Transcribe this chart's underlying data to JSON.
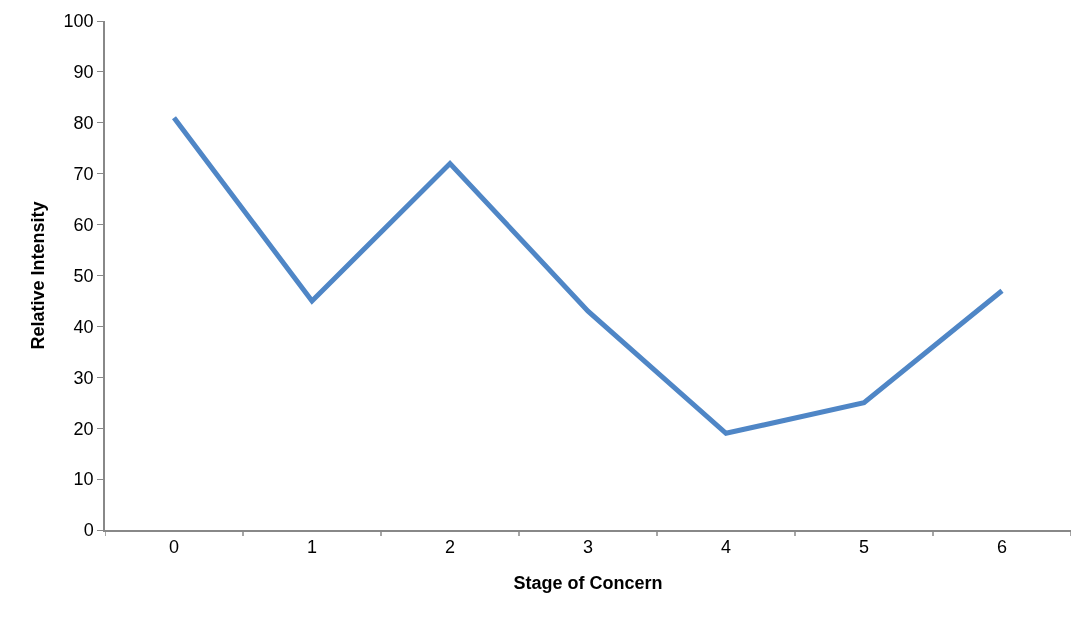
{
  "chart_data": {
    "type": "line",
    "xlabel": "Stage of Concern",
    "ylabel": "Relative Intensity",
    "categories": [
      "0",
      "1",
      "2",
      "3",
      "4",
      "5",
      "6"
    ],
    "series": [
      {
        "color": "#4f86c6",
        "values": [
          81,
          45,
          72,
          43,
          19,
          25,
          47
        ]
      }
    ],
    "ylim": [
      0,
      100
    ],
    "yticks": [
      0,
      10,
      20,
      30,
      40,
      50,
      60,
      70,
      80,
      90,
      100
    ],
    "grid": false,
    "marker": "none",
    "line_style": "solid"
  }
}
